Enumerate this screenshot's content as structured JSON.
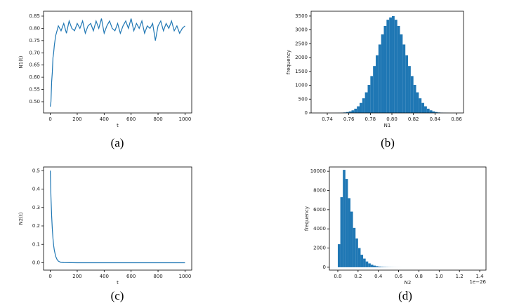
{
  "chart_data": [
    {
      "type": "line",
      "caption": "(a)",
      "x_label": "t",
      "y_label": "N1(t)",
      "color": "#1f77b4",
      "x": [
        0,
        5,
        10,
        15,
        20,
        25,
        30,
        35,
        40,
        60,
        80,
        100,
        120,
        140,
        160,
        180,
        200,
        220,
        240,
        260,
        280,
        300,
        320,
        340,
        360,
        380,
        400,
        420,
        440,
        460,
        480,
        500,
        520,
        540,
        560,
        580,
        600,
        620,
        640,
        660,
        680,
        700,
        720,
        740,
        760,
        780,
        800,
        820,
        840,
        860,
        880,
        900,
        920,
        940,
        960,
        980,
        1000
      ],
      "values": [
        0.48,
        0.5,
        0.58,
        0.62,
        0.68,
        0.7,
        0.73,
        0.75,
        0.77,
        0.81,
        0.79,
        0.82,
        0.78,
        0.83,
        0.8,
        0.79,
        0.82,
        0.8,
        0.83,
        0.78,
        0.81,
        0.82,
        0.79,
        0.83,
        0.8,
        0.84,
        0.78,
        0.81,
        0.83,
        0.8,
        0.79,
        0.82,
        0.78,
        0.81,
        0.83,
        0.8,
        0.84,
        0.79,
        0.82,
        0.8,
        0.83,
        0.78,
        0.81,
        0.8,
        0.82,
        0.75,
        0.81,
        0.83,
        0.79,
        0.82,
        0.8,
        0.83,
        0.79,
        0.81,
        0.78,
        0.8,
        0.81
      ],
      "xlim": [
        -50,
        1050
      ],
      "ylim": [
        0.454,
        0.87
      ],
      "xticks": [
        0,
        200,
        400,
        600,
        800,
        1000
      ],
      "yticks": [
        {
          "value": 0.5,
          "label": "0.50"
        },
        0.55,
        {
          "value": 0.6,
          "label": "0.60"
        },
        0.65,
        {
          "value": 0.7,
          "label": "0.70"
        },
        0.75,
        {
          "value": 0.8,
          "label": "0.80"
        },
        0.85
      ]
    },
    {
      "type": "histogram",
      "caption": "(b)",
      "x_label": "N1",
      "y_label": "frequency",
      "color": "#1f77b4",
      "bins": [
        0.745,
        0.7475,
        0.75,
        0.7525,
        0.755,
        0.7575,
        0.76,
        0.7625,
        0.765,
        0.7675,
        0.77,
        0.7725,
        0.775,
        0.7775,
        0.78,
        0.7825,
        0.785,
        0.7875,
        0.79,
        0.7925,
        0.795,
        0.7975,
        0.8,
        0.8025,
        0.805,
        0.8075,
        0.81,
        0.8125,
        0.815,
        0.8175,
        0.82,
        0.8225,
        0.825,
        0.8275,
        0.83,
        0.8325,
        0.835,
        0.8375,
        0.84,
        0.8425,
        0.845,
        0.8475,
        0.85,
        0.8525,
        0.855
      ],
      "counts": [
        1,
        3,
        5,
        10,
        18,
        33,
        57,
        95,
        154,
        240,
        362,
        529,
        745,
        1013,
        1333,
        1694,
        2083,
        2473,
        2837,
        3144,
        3367,
        3450,
        3500,
        3367,
        3144,
        2837,
        2473,
        2083,
        1694,
        1333,
        1013,
        745,
        529,
        362,
        240,
        154,
        95,
        57,
        33,
        18,
        10,
        5,
        3,
        1
      ],
      "xlim": [
        0.725,
        0.8665
      ],
      "ylim": [
        0,
        3675
      ],
      "xticks": [
        0.74,
        0.76,
        0.78,
        {
          "value": 0.8,
          "label": "0.80"
        },
        0.82,
        0.84,
        0.86
      ],
      "yticks": [
        0,
        500,
        1000,
        1500,
        2000,
        2500,
        3000,
        3500
      ]
    },
    {
      "type": "line",
      "caption": "(c)",
      "x_label": "t",
      "y_label": "N2(t)",
      "color": "#1f77b4",
      "x": [
        0,
        5,
        10,
        15,
        20,
        25,
        30,
        40,
        50,
        60,
        70,
        80,
        100,
        200,
        300,
        400,
        500,
        600,
        700,
        800,
        900,
        1000
      ],
      "values": [
        0.5,
        0.358,
        0.257,
        0.184,
        0.132,
        0.094,
        0.068,
        0.035,
        0.018,
        0.009,
        0.005,
        0.002,
        0.001,
        0,
        0,
        0,
        0,
        0,
        0,
        0,
        0,
        0
      ],
      "xlim": [
        -50,
        1050
      ],
      "ylim": [
        -0.04,
        0.52
      ],
      "xticks": [
        0,
        200,
        400,
        600,
        800,
        1000
      ],
      "yticks": [
        {
          "value": 0,
          "label": "0.0"
        },
        0.1,
        0.2,
        0.3,
        0.4,
        0.5
      ]
    },
    {
      "type": "histogram",
      "caption": "(d)",
      "x_label": "N2",
      "y_label": "frequency",
      "x_offset_label": "1e−26",
      "color": "#1f77b4",
      "bins": [
        0,
        0.025,
        0.05,
        0.075,
        0.1,
        0.125,
        0.15,
        0.175,
        0.2,
        0.225,
        0.25,
        0.275,
        0.3,
        0.325,
        0.35,
        0.375,
        0.4,
        0.425,
        0.45,
        0.475,
        0.5,
        0.525,
        0.55,
        0.575,
        0.6,
        0.625,
        0.65,
        0.675,
        0.7
      ],
      "counts": [
        2400,
        7300,
        10150,
        9200,
        7200,
        5800,
        4100,
        3000,
        2000,
        1300,
        900,
        600,
        400,
        260,
        170,
        110,
        70,
        45,
        30,
        20,
        12,
        8,
        5,
        3,
        2,
        1,
        1,
        1
      ],
      "xlim": [
        -0.083,
        1.462
      ],
      "ylim": [
        -300,
        10450
      ],
      "xticks": [
        {
          "value": 0,
          "label": "0.0"
        },
        0.2,
        0.4,
        0.6,
        0.8,
        {
          "value": 1,
          "label": "1.0"
        },
        1.2,
        1.4
      ],
      "yticks": [
        0,
        2000,
        4000,
        6000,
        8000,
        10000
      ]
    }
  ]
}
